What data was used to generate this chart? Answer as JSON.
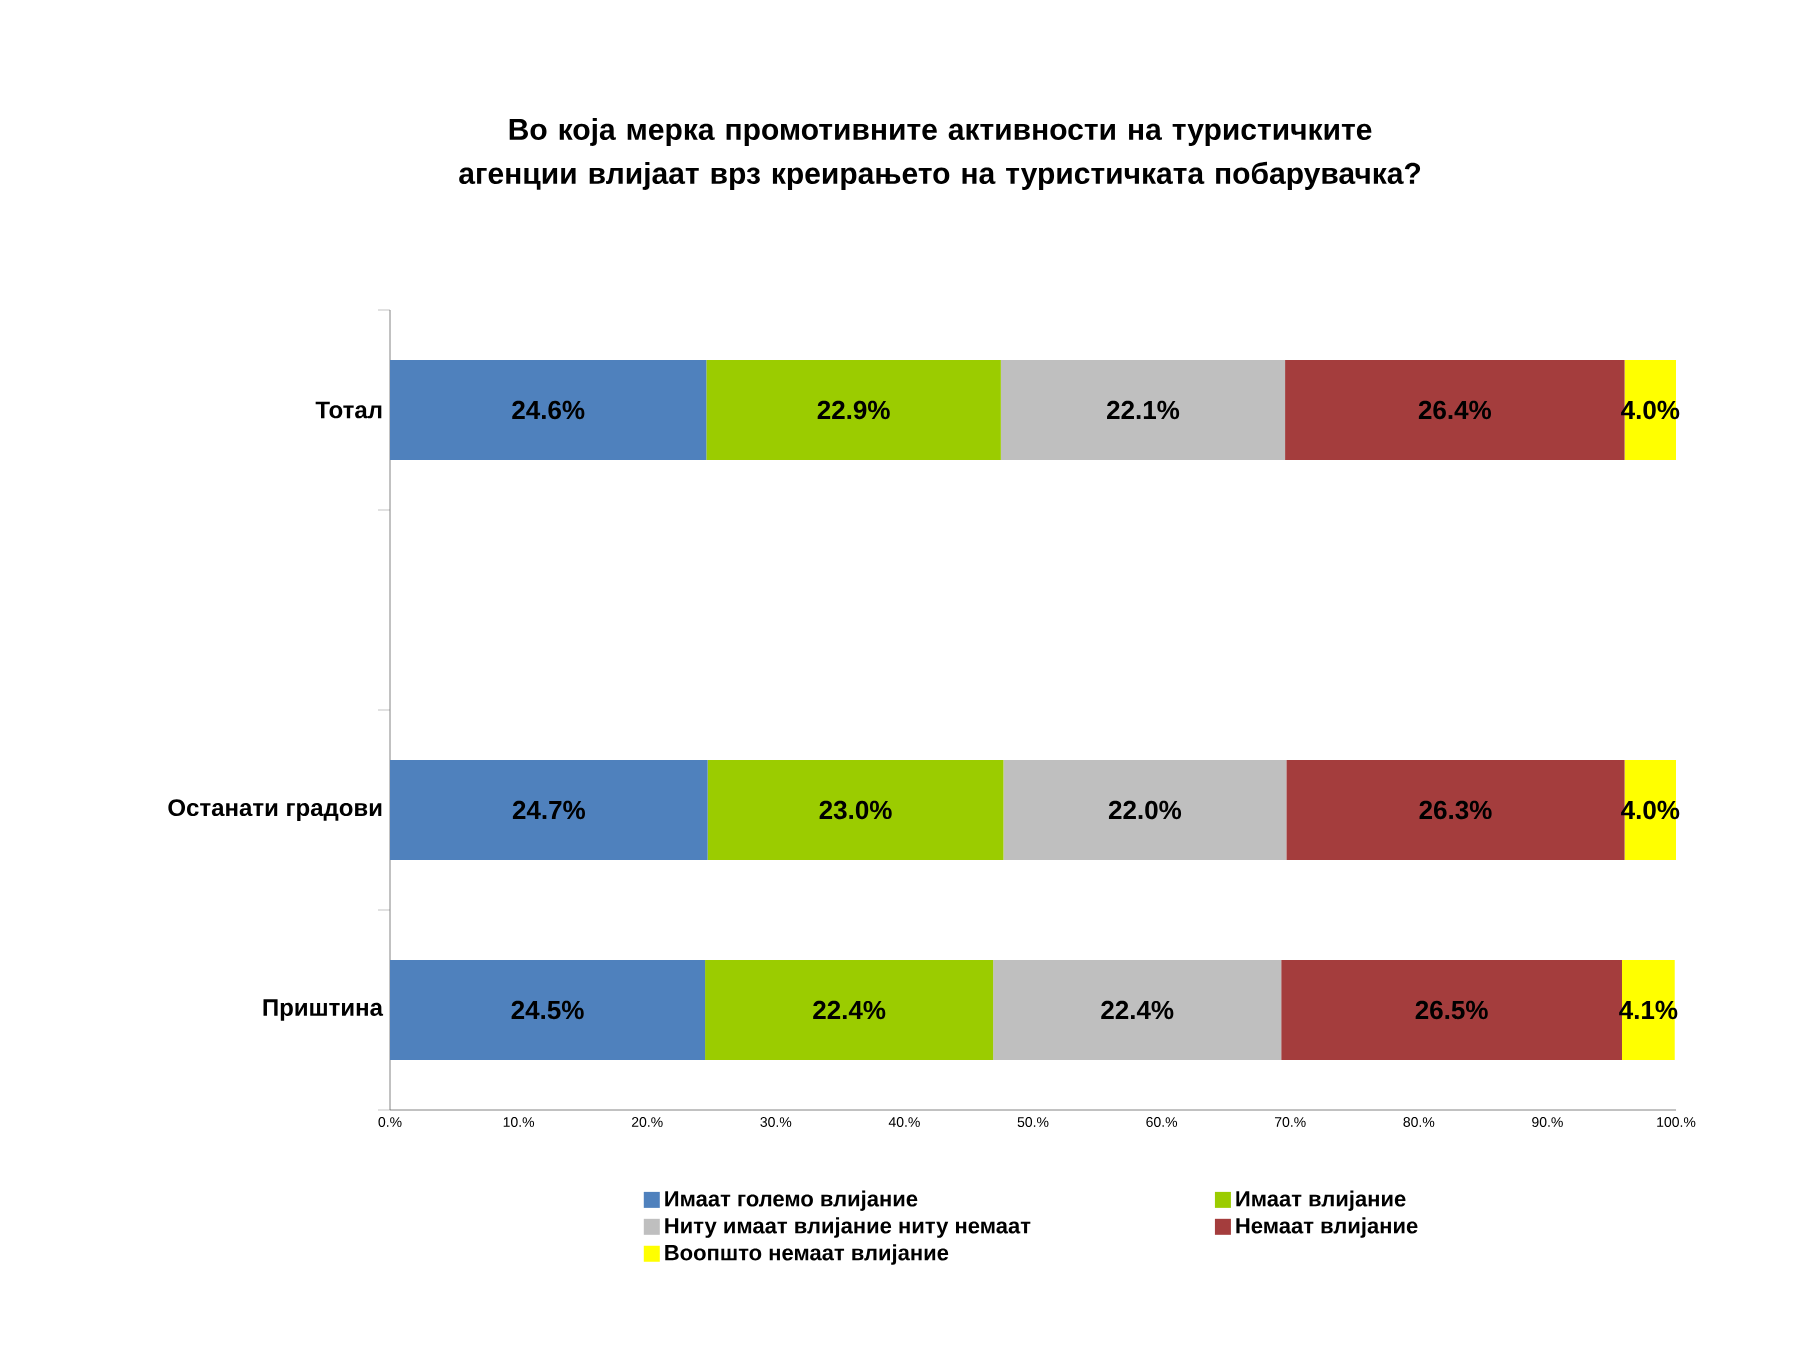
{
  "chart_data": {
    "type": "bar",
    "orientation": "horizontal",
    "stacked": true,
    "title": "Во која мерка промотивните активности на туристичките агенции влијаат врз креирањето на туристичката побарувачка?",
    "categories": [
      "Тотал",
      null,
      "Останати градови",
      "Приштина"
    ],
    "series": [
      {
        "name": "Имаат големо влијание",
        "color": "#4f81bd",
        "values": [
          24.6,
          null,
          24.7,
          24.5
        ],
        "value_labels": [
          "24.6%",
          null,
          "24.7%",
          "24.5%"
        ]
      },
      {
        "name": "Имаат влијание",
        "color": "#9bcc00",
        "values": [
          22.9,
          null,
          23.0,
          22.4
        ],
        "value_labels": [
          "22.9%",
          null,
          "23.0%",
          "22.4%"
        ]
      },
      {
        "name": "Ниту имаат влијание ниту немаат",
        "color": "#bfbfbf",
        "values": [
          22.1,
          null,
          22.0,
          22.4
        ],
        "value_labels": [
          "22.1%",
          null,
          "22.0%",
          "22.4%"
        ]
      },
      {
        "name": "Немаат влијание",
        "color": "#a43d3d",
        "values": [
          26.4,
          null,
          26.3,
          26.5
        ],
        "value_labels": [
          "26.4%",
          null,
          "26.3%",
          "26.5%"
        ]
      },
      {
        "name": "Воопшто немаат влијание",
        "color": "#ffff00",
        "values": [
          4.0,
          null,
          4.0,
          4.1
        ],
        "value_labels": [
          "4.0%",
          null,
          "4.0%",
          "4.1%"
        ]
      }
    ],
    "xlim": [
      0,
      100
    ],
    "xticks": [
      {
        "value": 0,
        "label": "0.%"
      },
      {
        "value": 10,
        "label": "10.%"
      },
      {
        "value": 20,
        "label": "20.%"
      },
      {
        "value": 30,
        "label": "30.%"
      },
      {
        "value": 40,
        "label": "40.%"
      },
      {
        "value": 50,
        "label": "50.%"
      },
      {
        "value": 60,
        "label": "60.%"
      },
      {
        "value": 70,
        "label": "70.%"
      },
      {
        "value": 80,
        "label": "80.%"
      },
      {
        "value": 90,
        "label": "90.%"
      },
      {
        "value": 100,
        "label": "100.%"
      }
    ],
    "legend": "bottom",
    "grid": false
  }
}
